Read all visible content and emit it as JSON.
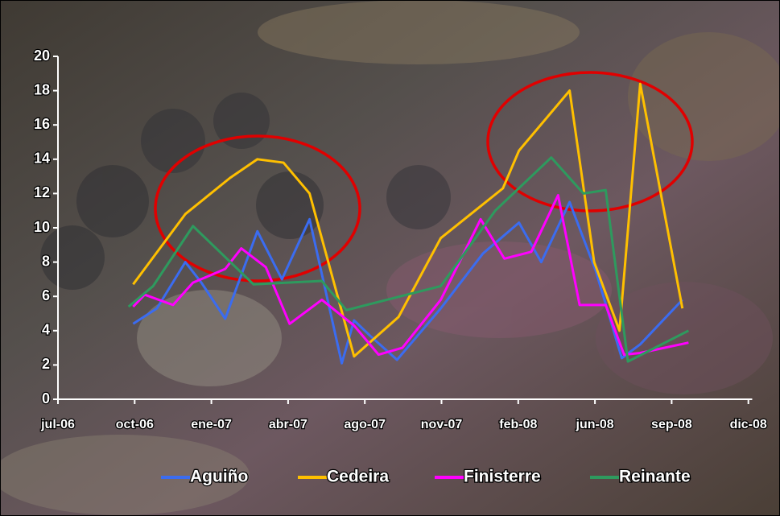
{
  "chart_data": {
    "type": "line",
    "xlim": [
      -0.3,
      9.05
    ],
    "xticks": [
      {
        "value": 0,
        "label": "jul-06"
      },
      {
        "value": 1,
        "label": "oct-06"
      },
      {
        "value": 2,
        "label": "ene-07"
      },
      {
        "value": 3,
        "label": "abr-07"
      },
      {
        "value": 4,
        "label": "ago-07"
      },
      {
        "value": 5,
        "label": "nov-07"
      },
      {
        "value": 6,
        "label": "feb-08"
      },
      {
        "value": 7,
        "label": "jun-08"
      },
      {
        "value": 8,
        "label": "sep-08"
      },
      {
        "value": 9,
        "label": "dic-08"
      }
    ],
    "ylim": [
      0,
      20
    ],
    "yticks": [
      0,
      2,
      4,
      6,
      8,
      10,
      12,
      14,
      16,
      18,
      20
    ],
    "legend": "bottom",
    "series": [
      {
        "name": "Aguiño",
        "color": "#3b6cf0",
        "x": [
          0.98,
          1.29,
          1.66,
          1.87,
          2.18,
          2.6,
          2.92,
          3.28,
          3.7,
          3.86,
          4.07,
          4.42,
          4.99,
          5.54,
          6.01,
          6.3,
          6.67,
          7.01,
          7.35,
          7.59,
          8.14
        ],
        "values": [
          4.4,
          5.3,
          8.0,
          6.8,
          4.7,
          9.8,
          7.0,
          10.5,
          2.1,
          4.6,
          3.7,
          2.3,
          5.3,
          8.5,
          10.3,
          8.0,
          11.5,
          7.5,
          2.4,
          3.2,
          5.8
        ]
      },
      {
        "name": "Cedeira",
        "color": "#ffc000",
        "x": [
          0.98,
          1.66,
          2.24,
          2.6,
          2.94,
          3.28,
          3.86,
          4.44,
          4.99,
          5.8,
          6.01,
          6.67,
          6.99,
          7.32,
          7.59,
          8.14
        ],
        "values": [
          6.7,
          10.8,
          12.9,
          14.0,
          13.8,
          12.0,
          2.5,
          4.8,
          9.4,
          12.3,
          14.5,
          18.0,
          8.0,
          4.0,
          18.4,
          5.3
        ]
      },
      {
        "name": "Finisterre",
        "color": "#ff00ff",
        "x": [
          0.98,
          1.13,
          1.5,
          1.76,
          2.18,
          2.39,
          2.71,
          3.02,
          3.44,
          3.86,
          4.18,
          4.49,
          4.99,
          5.51,
          5.82,
          6.17,
          6.52,
          6.8,
          7.14,
          7.38,
          7.59,
          8.22
        ],
        "values": [
          5.4,
          6.1,
          5.5,
          6.8,
          7.6,
          8.8,
          7.7,
          4.4,
          5.8,
          4.3,
          2.6,
          3.0,
          5.8,
          10.5,
          8.2,
          8.6,
          11.9,
          5.5,
          5.5,
          2.6,
          2.7,
          3.3
        ]
      },
      {
        "name": "Reinante",
        "color": "#2e9a5e",
        "x": [
          0.92,
          1.24,
          1.76,
          2.55,
          3.44,
          3.76,
          4.99,
          5.7,
          6.43,
          6.85,
          7.14,
          7.43,
          8.22
        ],
        "values": [
          5.4,
          6.6,
          10.1,
          6.7,
          6.9,
          5.2,
          6.6,
          11.0,
          14.1,
          12.0,
          12.2,
          2.2,
          4.0
        ]
      }
    ]
  }
}
